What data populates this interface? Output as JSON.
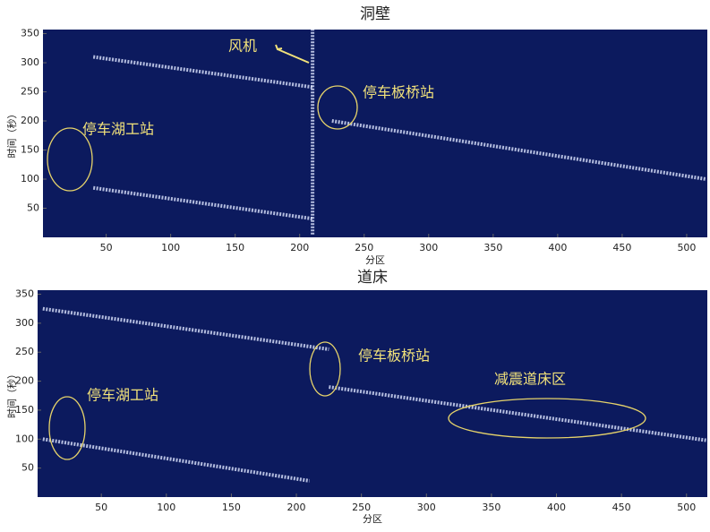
{
  "chart_data": [
    {
      "type": "line",
      "title": "洞壁",
      "xlabel": "分区",
      "ylabel": "时间（秒）",
      "xlim": [
        1,
        516
      ],
      "ylim": [
        0,
        357
      ],
      "xticks": [
        50,
        100,
        150,
        200,
        250,
        300,
        350,
        400,
        450,
        500
      ],
      "yticks": [
        50,
        100,
        150,
        200,
        250,
        300,
        350
      ],
      "background": "#0c1a5e",
      "color": "#dfe6ff",
      "series": [
        {
          "x": [
            40,
            210
          ],
          "values": [
            310,
            258
          ]
        },
        {
          "x": [
            40,
            210
          ],
          "values": [
            85,
            32
          ]
        },
        {
          "x": [
            225,
            515
          ],
          "values": [
            200,
            100
          ]
        },
        {
          "x": [
            210,
            210
          ],
          "values": [
            5,
            357
          ]
        }
      ],
      "annotations": [
        "风机",
        "停车板桥站",
        "停车湖工站"
      ]
    },
    {
      "type": "line",
      "title": "道床",
      "xlabel": "分区",
      "ylabel": "时间（秒）",
      "xlim": [
        1,
        516
      ],
      "ylim": [
        0,
        357
      ],
      "xticks": [
        50,
        100,
        150,
        200,
        250,
        300,
        350,
        400,
        450,
        500
      ],
      "yticks": [
        50,
        100,
        150,
        200,
        250,
        300,
        350
      ],
      "background": "#0c1a5e",
      "color": "#dfe6ff",
      "series": [
        {
          "x": [
            5,
            225
          ],
          "values": [
            325,
            255
          ]
        },
        {
          "x": [
            5,
            210
          ],
          "values": [
            100,
            28
          ]
        },
        {
          "x": [
            225,
            515
          ],
          "values": [
            190,
            98
          ]
        }
      ],
      "annotations": [
        "停车板桥站",
        "停车湖工站",
        "减震道床区"
      ]
    }
  ]
}
